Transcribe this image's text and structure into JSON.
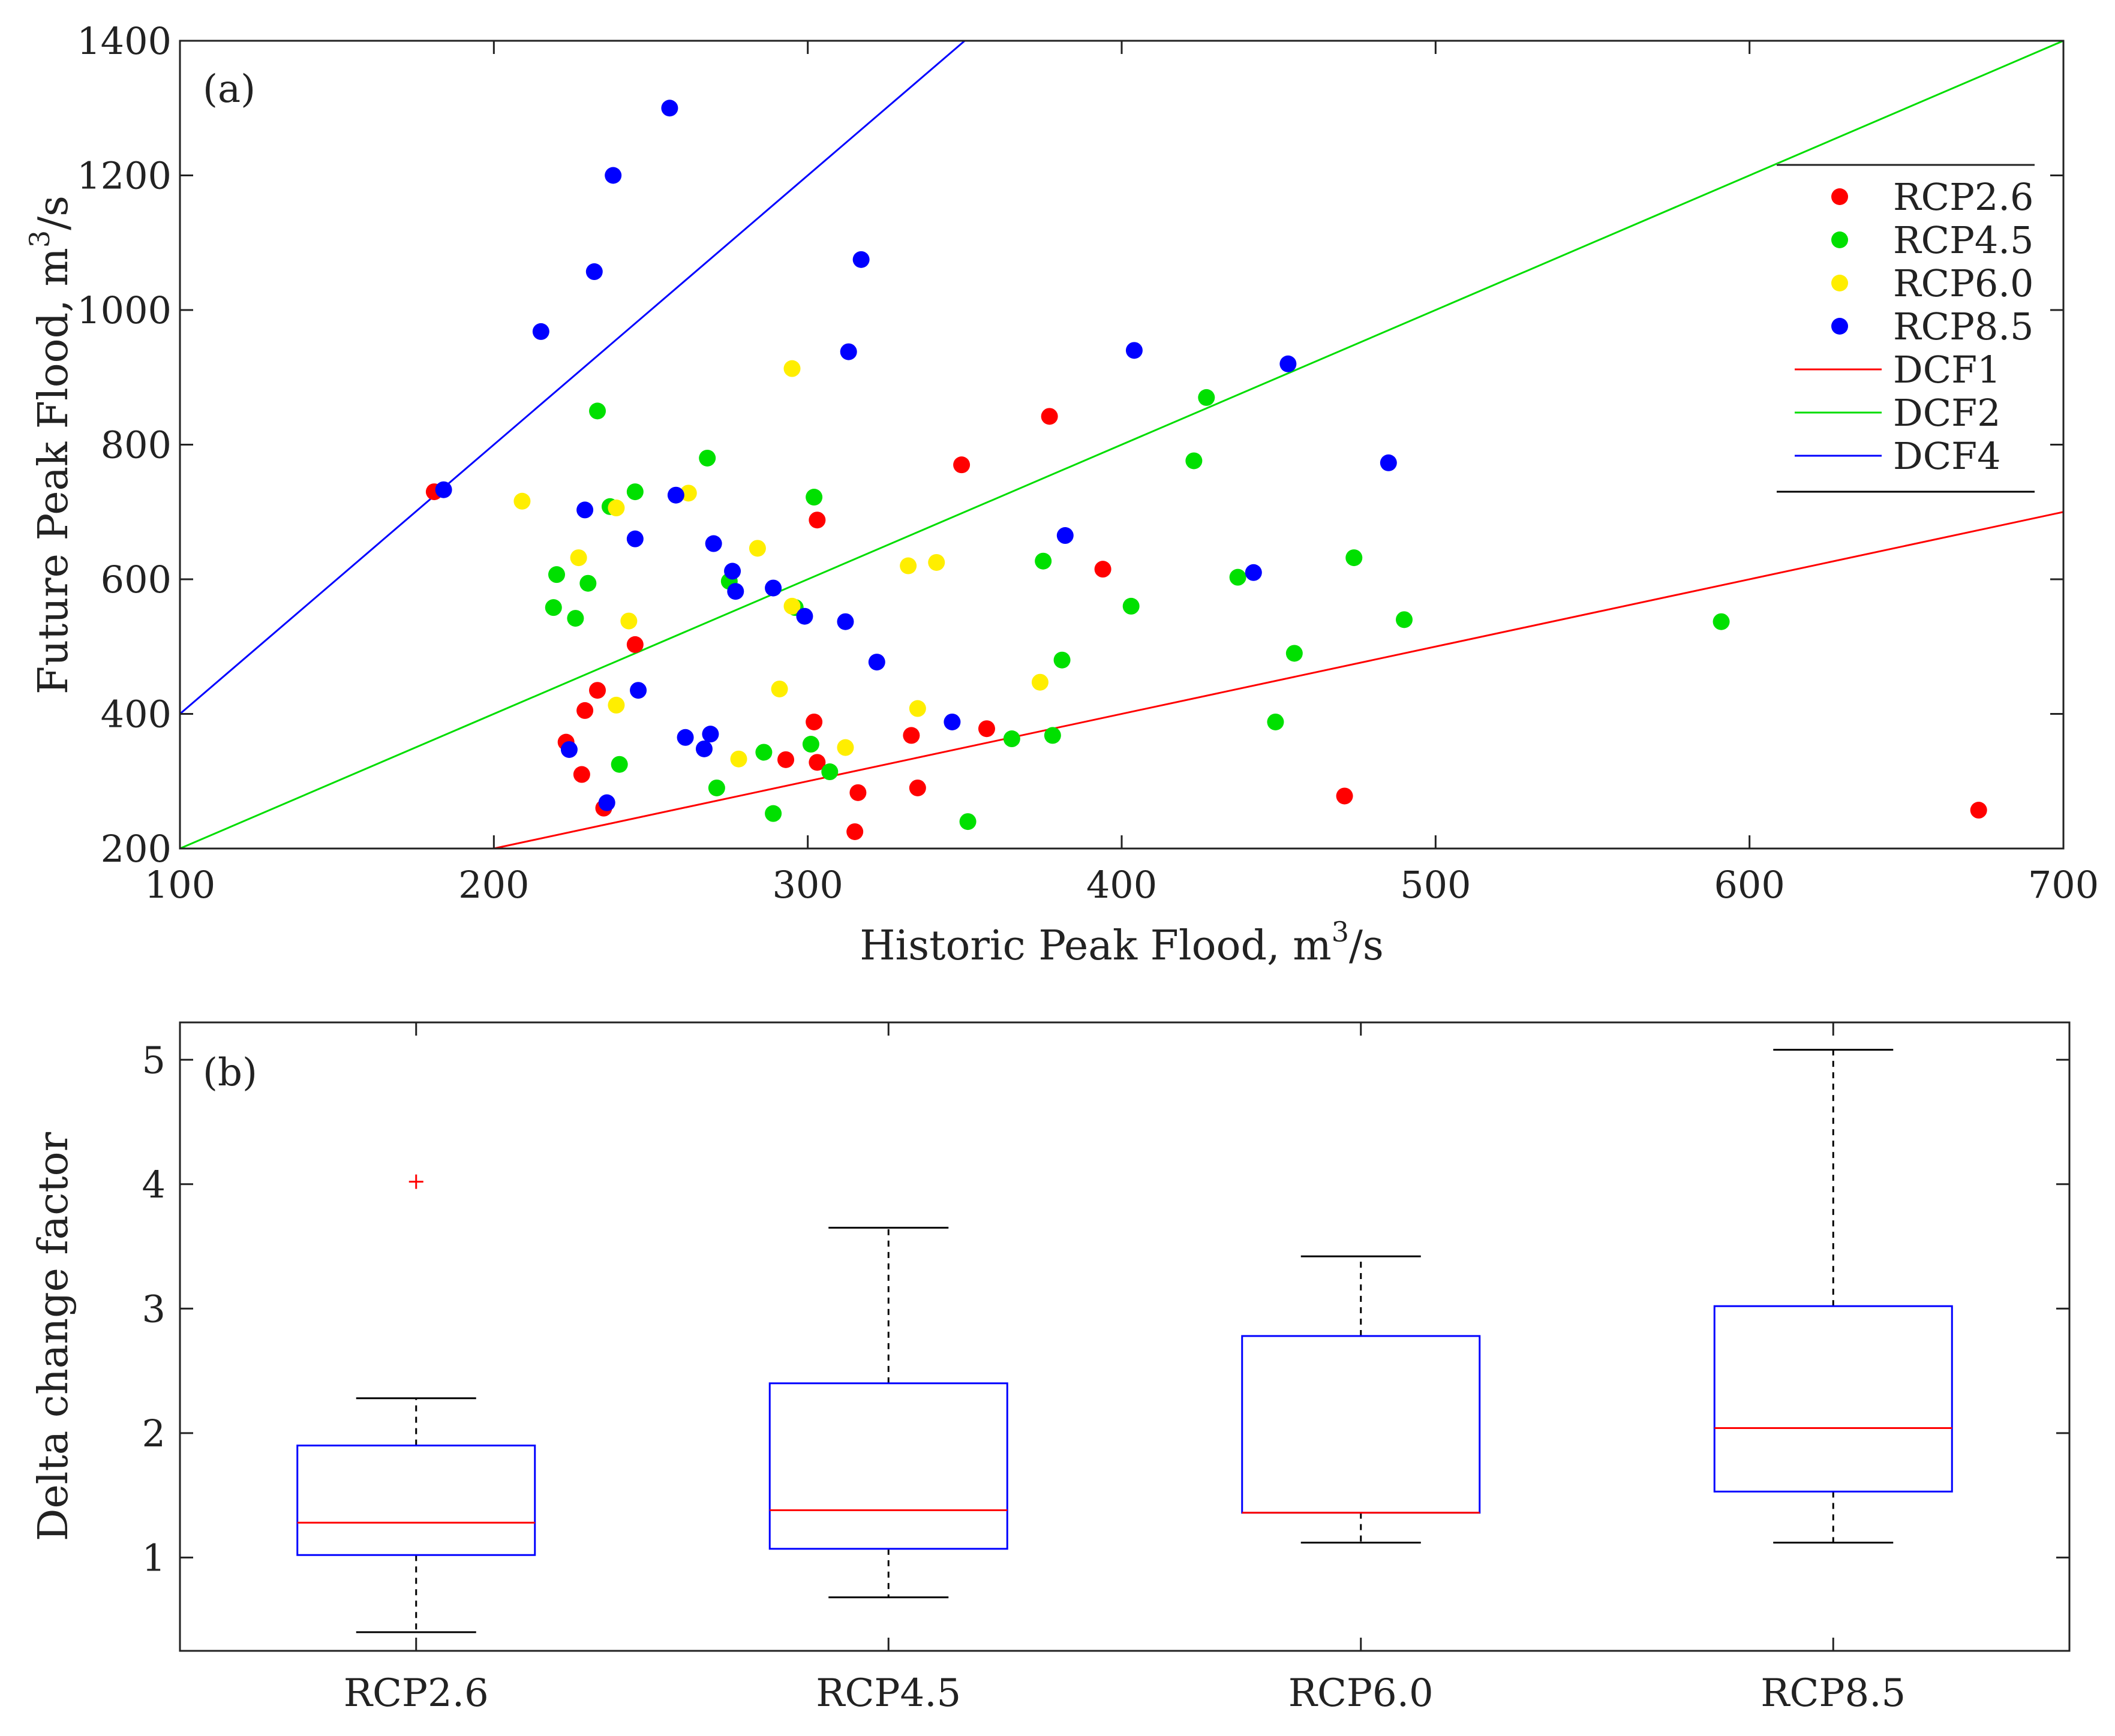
{
  "colors": {
    "rcp26": "#ff0000",
    "rcp45": "#00e000",
    "rcp60": "#ffee00",
    "rcp85": "#0000ff",
    "dcf1": "#ff0000",
    "dcf2": "#00dd00",
    "dcf4": "#0000ff",
    "box": "#0000ff",
    "median": "#ff0000",
    "outlier": "#ff0000",
    "whisker": "#000000"
  },
  "chart_data": [
    {
      "type": "scatter",
      "panel_label": "(a)",
      "xlabel": "Historic Peak Flood, m³/s",
      "xlabel_parts": [
        "Historic Peak Flood, m",
        "3",
        "/s"
      ],
      "ylabel": "Future Peak Flood, m³/s",
      "ylabel_parts": [
        "Future Peak Flood, m",
        "3",
        "/s"
      ],
      "xlim": [
        100,
        700
      ],
      "ylim": [
        200,
        1400
      ],
      "x_ticks": [
        100,
        200,
        300,
        400,
        500,
        600,
        700
      ],
      "y_ticks": [
        200,
        400,
        600,
        800,
        1000,
        1200,
        1400
      ],
      "grid": false,
      "legend_position": "top-right",
      "legend": [
        {
          "label": "RCP2.6",
          "kind": "marker",
          "color_key": "rcp26"
        },
        {
          "label": "RCP4.5",
          "kind": "marker",
          "color_key": "rcp45"
        },
        {
          "label": "RCP6.0",
          "kind": "marker",
          "color_key": "rcp60"
        },
        {
          "label": "RCP8.5",
          "kind": "marker",
          "color_key": "rcp85"
        },
        {
          "label": "DCF1",
          "kind": "line",
          "color_key": "dcf1"
        },
        {
          "label": "DCF2",
          "kind": "line",
          "color_key": "dcf2"
        },
        {
          "label": "DCF4",
          "kind": "line",
          "color_key": "dcf4"
        },
        {
          "label": "",
          "kind": "line",
          "color_key": "whisker"
        }
      ],
      "lines": [
        {
          "name": "DCF1",
          "factor": 1,
          "color_key": "dcf1"
        },
        {
          "name": "DCF2",
          "factor": 2,
          "color_key": "dcf2"
        },
        {
          "name": "DCF4",
          "factor": 4,
          "color_key": "dcf4"
        }
      ],
      "series": [
        {
          "name": "RCP2.6",
          "color_key": "rcp26",
          "points": [
            [
              181,
              730
            ],
            [
              223,
              358
            ],
            [
              228,
              310
            ],
            [
              229,
              405
            ],
            [
              233,
              435
            ],
            [
              235,
              260
            ],
            [
              245,
              503
            ],
            [
              293,
              332
            ],
            [
              302,
              388
            ],
            [
              303,
              328
            ],
            [
              303,
              688
            ],
            [
              315,
              225
            ],
            [
              316,
              283
            ],
            [
              333,
              368
            ],
            [
              335,
              290
            ],
            [
              349,
              770
            ],
            [
              357,
              378
            ],
            [
              377,
              842
            ],
            [
              394,
              615
            ],
            [
              471,
              278
            ],
            [
              673,
              257
            ]
          ]
        },
        {
          "name": "RCP4.5",
          "color_key": "rcp45",
          "points": [
            [
              219,
              558
            ],
            [
              220,
              607
            ],
            [
              226,
              542
            ],
            [
              230,
              594
            ],
            [
              233,
              850
            ],
            [
              237,
              708
            ],
            [
              240,
              325
            ],
            [
              245,
              730
            ],
            [
              268,
              780
            ],
            [
              271,
              290
            ],
            [
              275,
              597
            ],
            [
              286,
              343
            ],
            [
              289,
              252
            ],
            [
              296,
              558
            ],
            [
              301,
              355
            ],
            [
              302,
              722
            ],
            [
              307,
              314
            ],
            [
              351,
              240
            ],
            [
              365,
              363
            ],
            [
              375,
              627
            ],
            [
              378,
              368
            ],
            [
              381,
              480
            ],
            [
              403,
              560
            ],
            [
              423,
              776
            ],
            [
              427,
              870
            ],
            [
              437,
              603
            ],
            [
              449,
              388
            ],
            [
              455,
              490
            ],
            [
              474,
              632
            ],
            [
              490,
              540
            ],
            [
              591,
              537
            ]
          ]
        },
        {
          "name": "RCP6.0",
          "color_key": "rcp60",
          "points": [
            [
              209,
              716
            ],
            [
              227,
              632
            ],
            [
              239,
              413
            ],
            [
              239,
              706
            ],
            [
              243,
              538
            ],
            [
              262,
              728
            ],
            [
              278,
              333
            ],
            [
              284,
              646
            ],
            [
              291,
              437
            ],
            [
              295,
              560
            ],
            [
              295,
              913
            ],
            [
              312,
              350
            ],
            [
              332,
              620
            ],
            [
              335,
              408
            ],
            [
              341,
              625
            ],
            [
              374,
              447
            ]
          ]
        },
        {
          "name": "RCP8.5",
          "color_key": "rcp85",
          "points": [
            [
              184,
              733
            ],
            [
              215,
              968
            ],
            [
              224,
              347
            ],
            [
              229,
              703
            ],
            [
              232,
              1057
            ],
            [
              236,
              268
            ],
            [
              238,
              1200
            ],
            [
              245,
              660
            ],
            [
              246,
              435
            ],
            [
              256,
              1300
            ],
            [
              258,
              725
            ],
            [
              261,
              365
            ],
            [
              267,
              348
            ],
            [
              269,
              370
            ],
            [
              270,
              653
            ],
            [
              276,
              612
            ],
            [
              277,
              582
            ],
            [
              289,
              587
            ],
            [
              299,
              545
            ],
            [
              312,
              537
            ],
            [
              313,
              938
            ],
            [
              317,
              1075
            ],
            [
              322,
              477
            ],
            [
              346,
              388
            ],
            [
              382,
              665
            ],
            [
              404,
              940
            ],
            [
              442,
              610
            ],
            [
              453,
              920
            ],
            [
              485,
              773
            ]
          ]
        }
      ]
    },
    {
      "type": "box",
      "panel_label": "(b)",
      "xlabel": "",
      "ylabel": "Delta change factor",
      "ylim": [
        0.25,
        5.3
      ],
      "y_ticks": [
        1,
        2,
        3,
        4,
        5
      ],
      "categories": [
        "RCP2.6",
        "RCP4.5",
        "RCP6.0",
        "RCP8.5"
      ],
      "grid": false,
      "boxes": [
        {
          "name": "RCP2.6",
          "whisker_low": 0.4,
          "q1": 1.02,
          "median": 1.28,
          "q3": 1.9,
          "whisker_high": 2.28,
          "outliers": [
            4.02
          ]
        },
        {
          "name": "RCP4.5",
          "whisker_low": 0.68,
          "q1": 1.07,
          "median": 1.38,
          "q3": 2.4,
          "whisker_high": 3.65,
          "outliers": []
        },
        {
          "name": "RCP6.0",
          "whisker_low": 1.12,
          "q1": 1.36,
          "median": 1.36,
          "q3": 2.78,
          "whisker_high": 3.42,
          "outliers": []
        },
        {
          "name": "RCP8.5",
          "whisker_low": 1.12,
          "q1": 1.53,
          "median": 2.04,
          "q3": 3.02,
          "whisker_high": 5.08,
          "outliers": []
        }
      ]
    }
  ]
}
